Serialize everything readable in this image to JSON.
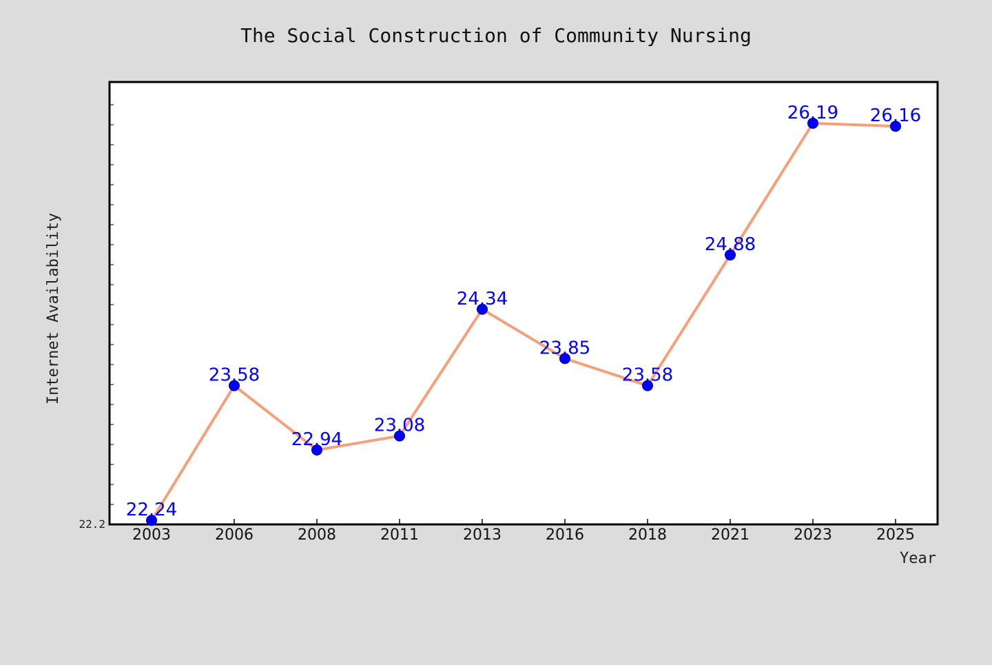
{
  "chart_data": {
    "type": "line",
    "title": "The Social Construction of Community Nursing",
    "xlabel": "Year",
    "ylabel": "Internet Availability",
    "categories": [
      "2003",
      "2006",
      "2008",
      "2011",
      "2013",
      "2016",
      "2018",
      "2021",
      "2023",
      "2025"
    ],
    "series": [
      {
        "values": [
          22.24,
          23.58,
          22.94,
          23.08,
          24.34,
          23.85,
          23.58,
          24.88,
          26.19,
          26.16
        ]
      }
    ],
    "data_labels": [
      "22.24",
      "23.58",
      "22.94",
      "23.08",
      "24.34",
      "23.85",
      "23.58",
      "24.88",
      "26.19",
      "26.16"
    ],
    "y_tick_labels": [
      "22.2"
    ],
    "ylim": [
      22.2,
      26.6
    ],
    "grid": false,
    "colors": {
      "line": "#f4a07a",
      "marker": "#0000ff",
      "data_label": "#0000ff",
      "plot_background": "#ffffff",
      "figure_background": "#dcdcdc"
    }
  }
}
